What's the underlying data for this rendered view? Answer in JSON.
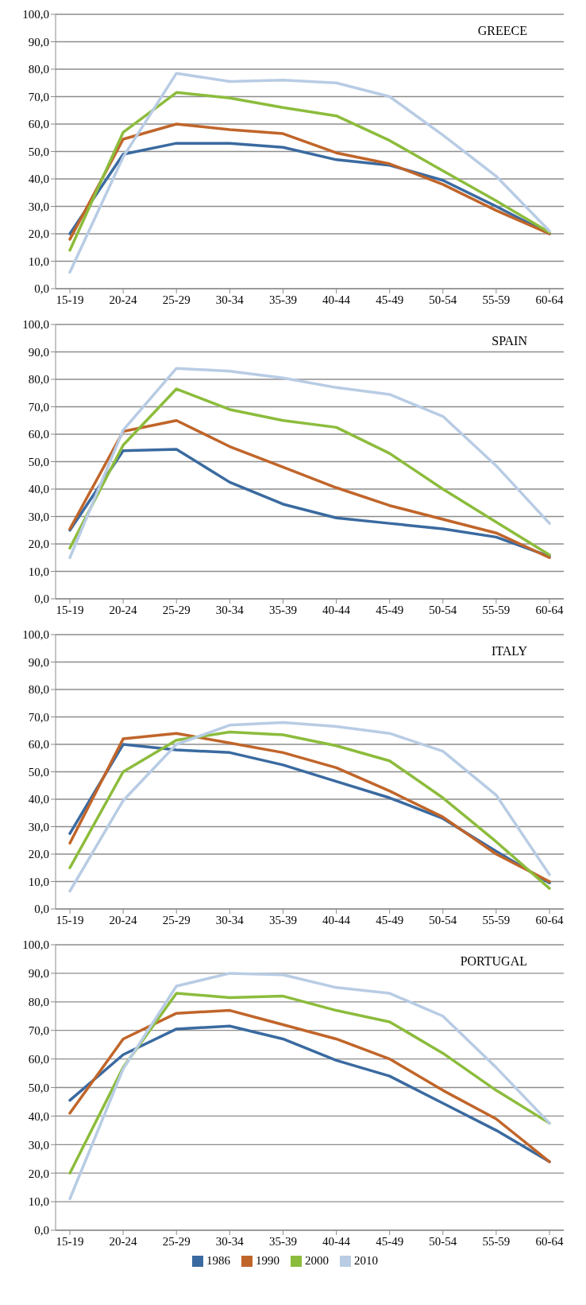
{
  "chart_data": [
    {
      "type": "line",
      "title": "GREECE",
      "categories": [
        "15-19",
        "20-24",
        "25-29",
        "30-34",
        "35-39",
        "40-44",
        "45-49",
        "50-54",
        "55-59",
        "60-64"
      ],
      "ylim": [
        0,
        100
      ],
      "yticks": [
        {
          "value": 0,
          "label": "0,0"
        },
        {
          "value": 10,
          "label": "10,0"
        },
        {
          "value": 20,
          "label": "20,0"
        },
        {
          "value": 30,
          "label": "30,0"
        },
        {
          "value": 40,
          "label": "40,0"
        },
        {
          "value": 50,
          "label": "50,0"
        },
        {
          "value": 60,
          "label": "60,0"
        },
        {
          "value": 70,
          "label": "70,0"
        },
        {
          "value": 80,
          "label": "80,0"
        },
        {
          "value": 90,
          "label": "90,0"
        },
        {
          "value": 100,
          "label": "100,0"
        }
      ],
      "grid": "y",
      "legend": false,
      "marker": "none",
      "series": [
        {
          "color": "#3a6aa0",
          "values": [
            20,
            49,
            53,
            53,
            51.5,
            47,
            45,
            39.5,
            30,
            20
          ]
        },
        {
          "color": "#c0652a",
          "values": [
            18,
            54.5,
            60,
            58,
            56.5,
            49.5,
            45.5,
            38,
            28.5,
            20
          ]
        },
        {
          "color": "#8cbc3c",
          "values": [
            14,
            57,
            71.5,
            69.5,
            66,
            63,
            54,
            43,
            32,
            20.5
          ]
        },
        {
          "color": "#b8cce4",
          "values": [
            6,
            48,
            78.5,
            75.5,
            76,
            75,
            70,
            56,
            41,
            21
          ]
        }
      ]
    },
    {
      "type": "line",
      "title": "SPAIN",
      "categories": [
        "15-19",
        "20-24",
        "25-29",
        "30-34",
        "35-39",
        "40-44",
        "45-49",
        "50-54",
        "55-59",
        "60-64"
      ],
      "ylim": [
        0,
        100
      ],
      "yticks": [
        {
          "value": 0,
          "label": "0,0"
        },
        {
          "value": 10,
          "label": "10,0"
        },
        {
          "value": 20,
          "label": "20,0"
        },
        {
          "value": 30,
          "label": "30,0"
        },
        {
          "value": 40,
          "label": "40,0"
        },
        {
          "value": 50,
          "label": "50,0"
        },
        {
          "value": 60,
          "label": "60,0"
        },
        {
          "value": 70,
          "label": "70,0"
        },
        {
          "value": 80,
          "label": "80,0"
        },
        {
          "value": 90,
          "label": "90,0"
        },
        {
          "value": 100,
          "label": "100,0"
        }
      ],
      "grid": "y",
      "legend": false,
      "marker": "none",
      "series": [
        {
          "color": "#3a6aa0",
          "values": [
            25,
            54,
            54.5,
            42.5,
            34.5,
            29.5,
            27.5,
            25.5,
            22.5,
            15.5
          ]
        },
        {
          "color": "#c0652a",
          "values": [
            25.5,
            61,
            65,
            55.5,
            48,
            40.5,
            34,
            29,
            24,
            15
          ]
        },
        {
          "color": "#8cbc3c",
          "values": [
            18.5,
            56,
            76.5,
            69,
            65,
            62.5,
            53,
            40,
            28,
            16
          ]
        },
        {
          "color": "#b8cce4",
          "values": [
            15,
            61.5,
            84,
            83,
            80.5,
            77,
            74.5,
            66.5,
            48.5,
            27.5
          ]
        }
      ]
    },
    {
      "type": "line",
      "title": "ITALY",
      "categories": [
        "15-19",
        "20-24",
        "25-29",
        "30-34",
        "35-39",
        "40-44",
        "45-49",
        "50-54",
        "55-59",
        "60-64"
      ],
      "ylim": [
        0,
        100
      ],
      "yticks": [
        {
          "value": 0,
          "label": "0,0"
        },
        {
          "value": 10,
          "label": "10,0"
        },
        {
          "value": 20,
          "label": "20,0"
        },
        {
          "value": 30,
          "label": "30,0"
        },
        {
          "value": 40,
          "label": "40,0"
        },
        {
          "value": 50,
          "label": "50,0"
        },
        {
          "value": 60,
          "label": "60,0"
        },
        {
          "value": 70,
          "label": "70,0"
        },
        {
          "value": 80,
          "label": "80,0"
        },
        {
          "value": 90,
          "label": "90,0"
        },
        {
          "value": 100,
          "label": "100,0"
        }
      ],
      "grid": "y",
      "legend": false,
      "marker": "none",
      "series": [
        {
          "color": "#3a6aa0",
          "values": [
            27.5,
            60,
            58,
            57,
            52.5,
            46.5,
            40.5,
            33,
            21,
            9.5
          ]
        },
        {
          "color": "#c0652a",
          "values": [
            24,
            62,
            64,
            60.5,
            57,
            51.5,
            43,
            33.5,
            20,
            10
          ]
        },
        {
          "color": "#8cbc3c",
          "values": [
            15,
            50,
            61.5,
            64.5,
            63.5,
            59.5,
            54,
            40.5,
            24.5,
            7.5
          ]
        },
        {
          "color": "#b8cce4",
          "values": [
            6.5,
            39.5,
            60,
            67,
            68,
            66.5,
            64,
            57.5,
            41.5,
            12.5
          ]
        }
      ]
    },
    {
      "type": "line",
      "title": "PORTUGAL",
      "categories": [
        "15-19",
        "20-24",
        "25-29",
        "30-34",
        "35-39",
        "40-44",
        "45-49",
        "50-54",
        "55-59",
        "60-64"
      ],
      "ylim": [
        0,
        100
      ],
      "yticks": [
        {
          "value": 0,
          "label": "0,0"
        },
        {
          "value": 10,
          "label": "10,0"
        },
        {
          "value": 20,
          "label": "20,0"
        },
        {
          "value": 30,
          "label": "30,0"
        },
        {
          "value": 40,
          "label": "40,0"
        },
        {
          "value": 50,
          "label": "50,0"
        },
        {
          "value": 60,
          "label": "60,0"
        },
        {
          "value": 70,
          "label": "70,0"
        },
        {
          "value": 80,
          "label": "80,0"
        },
        {
          "value": 90,
          "label": "90,0"
        },
        {
          "value": 100,
          "label": "100,0"
        }
      ],
      "grid": "y",
      "legend": "bottom",
      "marker": "none",
      "series": [
        {
          "name": "1986",
          "color": "#3a6aa0",
          "values": [
            45.5,
            61.5,
            70.5,
            71.5,
            67,
            59.5,
            54,
            44.5,
            35,
            24
          ]
        },
        {
          "name": "1990",
          "color": "#c0652a",
          "values": [
            41,
            67,
            76,
            77,
            72,
            67,
            60,
            49,
            39,
            24
          ]
        },
        {
          "name": "2000",
          "color": "#8cbc3c",
          "values": [
            20,
            57,
            83,
            81.5,
            82,
            77,
            73,
            62,
            49,
            37.5
          ]
        },
        {
          "name": "2010",
          "color": "#b8cce4",
          "values": [
            11,
            56.5,
            85.5,
            90,
            89.5,
            85,
            83,
            75,
            57,
            37.5
          ]
        }
      ]
    }
  ]
}
